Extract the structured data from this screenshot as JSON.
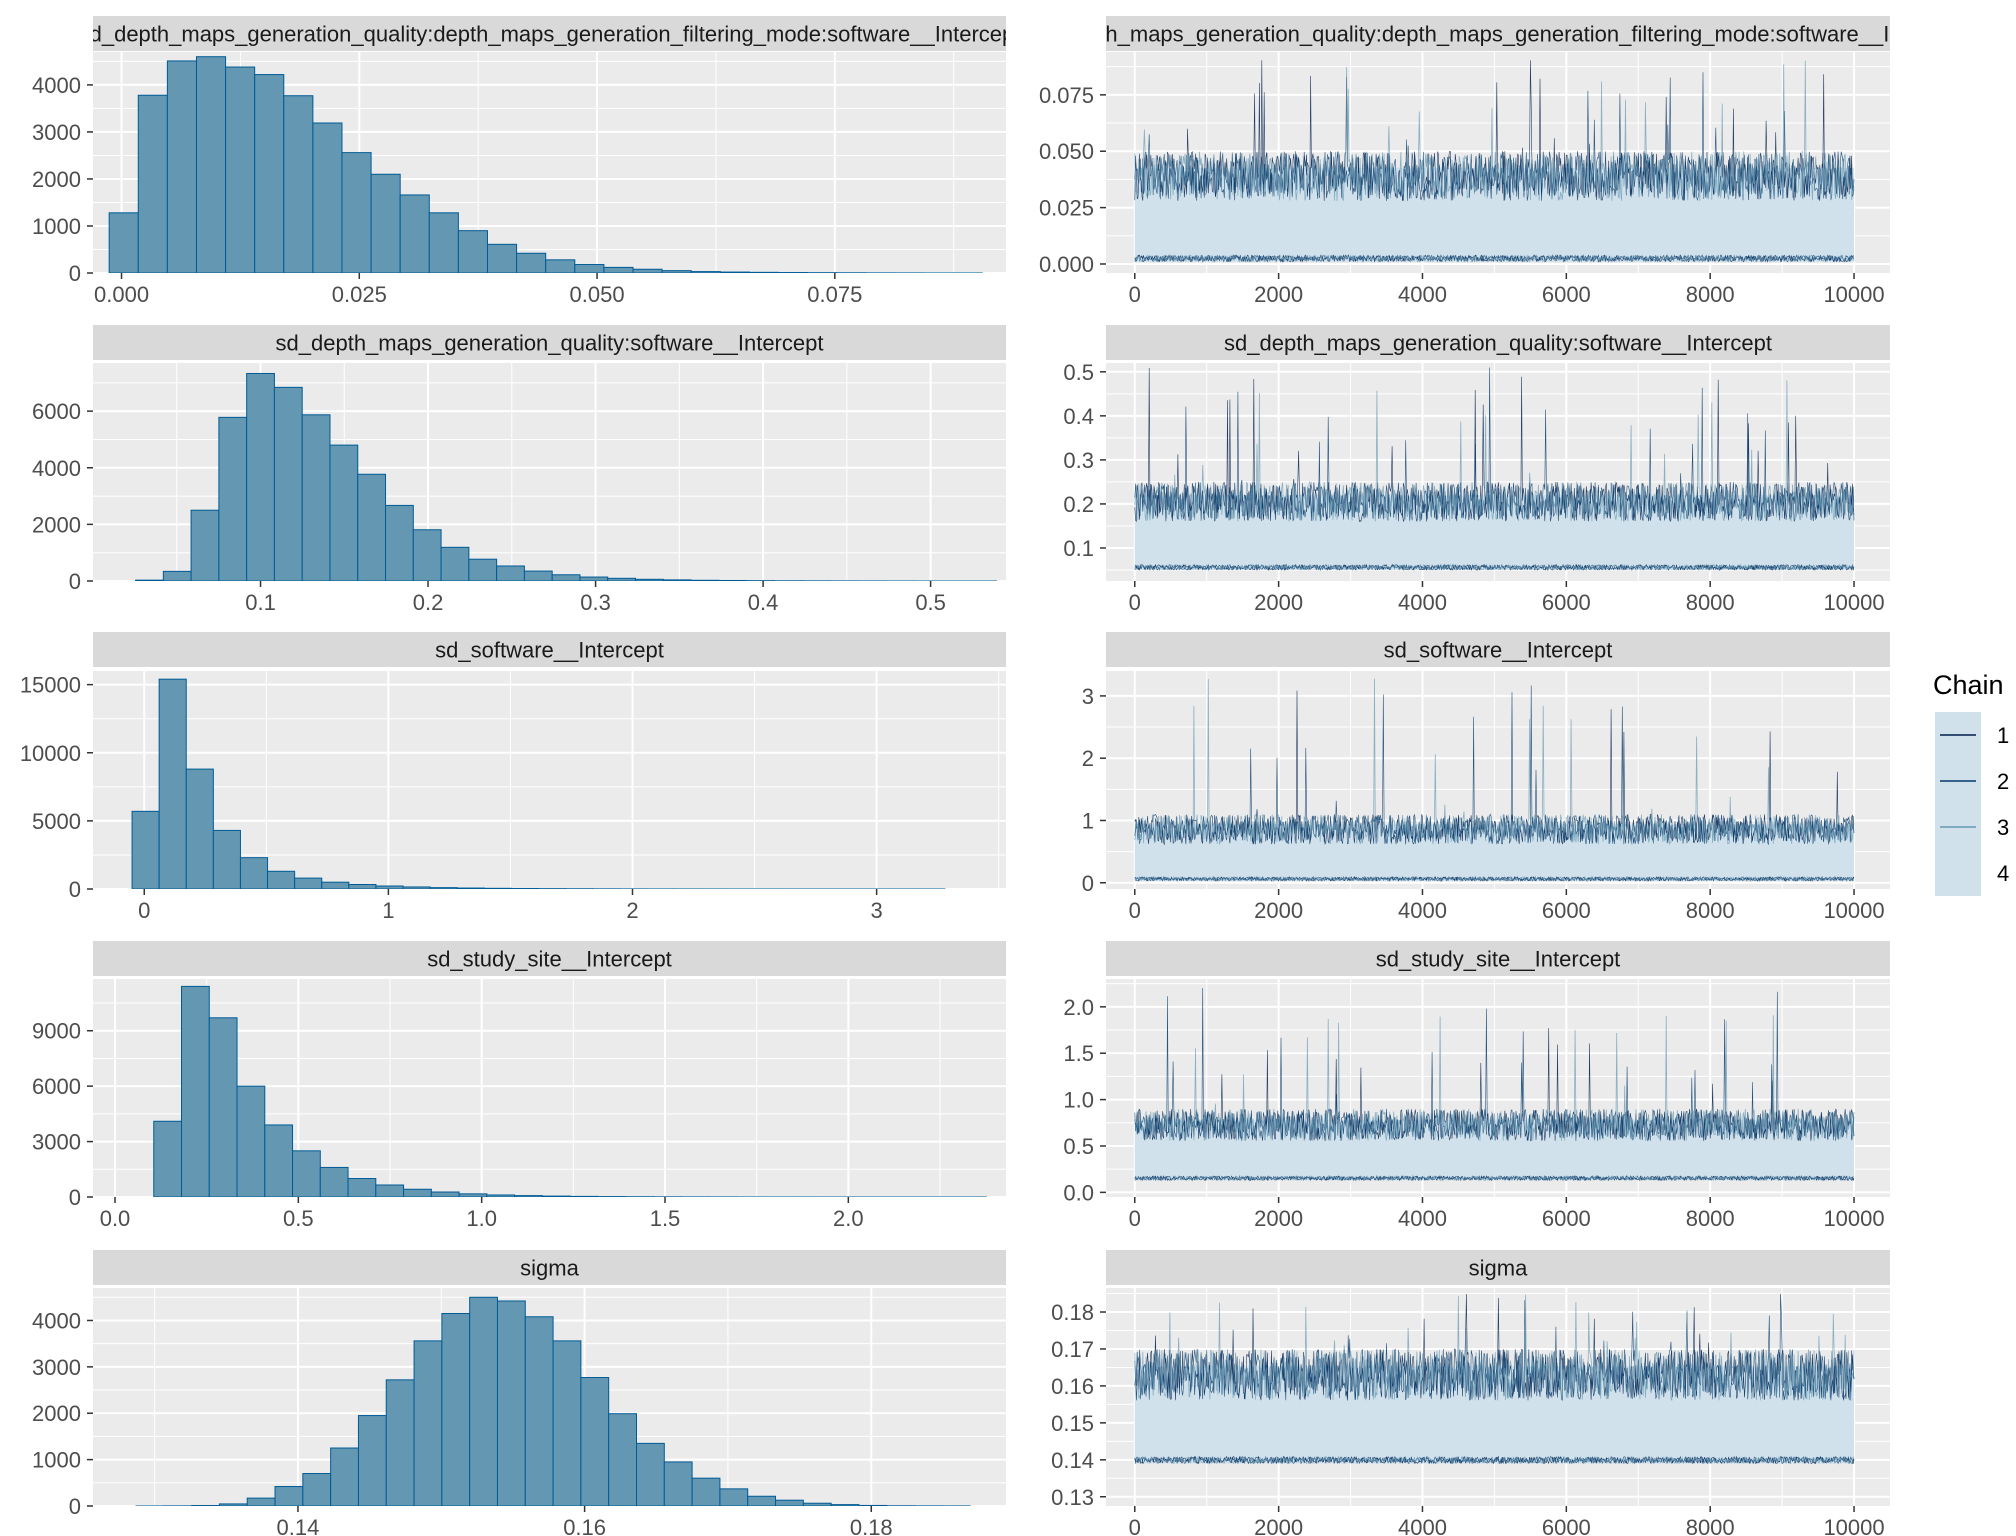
{
  "colors": {
    "panel_bg": "#EBEBEB",
    "strip_bg": "#D9D9D9",
    "grid": "#FFFFFF",
    "hist_fill": "#6497B1",
    "hist_stroke": "#005B96",
    "chain_colors": [
      "#011F4B",
      "#03396C",
      "#6497B1",
      "#D1E1EC"
    ],
    "trace_band": "#D1E1EC"
  },
  "legend": {
    "title": "Chain",
    "items": [
      "1",
      "2",
      "3",
      "4"
    ],
    "position": "right"
  },
  "chart_data": [
    {
      "type": "bar",
      "title": "sd_depth_maps_generation_quality:depth_maps_generation_filtering_mode:software__Intercept",
      "xlim": [
        -0.003,
        0.093
      ],
      "ylim": [
        0,
        4700
      ],
      "xticks": [
        0.0,
        0.025,
        0.05,
        0.075
      ],
      "xtick_labels": [
        "0.000",
        "0.025",
        "0.050",
        "0.075"
      ],
      "yticks": [
        0,
        1000,
        2000,
        3000,
        4000
      ],
      "ytick_labels": [
        "0",
        "1000",
        "2000",
        "3000",
        "4000"
      ],
      "bin_start": -0.0013,
      "bin_width": 0.00306,
      "values": [
        1280,
        3780,
        4510,
        4600,
        4380,
        4220,
        3770,
        3190,
        2560,
        2100,
        1660,
        1280,
        900,
        610,
        420,
        280,
        180,
        120,
        80,
        50,
        30,
        20,
        14,
        10,
        7,
        5,
        3,
        2,
        1,
        1
      ]
    },
    {
      "type": "line",
      "title": "sd_depth_maps_generation_quality:depth_maps_generation_filtering_mode:software__Intercept",
      "xlim": [
        -400,
        10500
      ],
      "ylim": [
        -0.004,
        0.094
      ],
      "xticks": [
        0,
        2000,
        4000,
        6000,
        8000,
        10000
      ],
      "xtick_labels": [
        "0",
        "2000",
        "4000",
        "6000",
        "8000",
        "10000"
      ],
      "yticks": [
        0.0,
        0.025,
        0.05,
        0.075
      ],
      "ytick_labels": [
        "0.000",
        "0.025",
        "0.050",
        "0.075"
      ],
      "iterations": [
        0,
        10000
      ],
      "band": [
        0.001,
        0.05
      ],
      "peak_max": 0.091,
      "mean": 0.016
    },
    {
      "type": "bar",
      "title": "sd_depth_maps_generation_quality:software__Intercept",
      "xlim": [
        0.0,
        0.545
      ],
      "ylim": [
        0,
        7700
      ],
      "xticks": [
        0.1,
        0.2,
        0.3,
        0.4,
        0.5
      ],
      "xtick_labels": [
        "0.1",
        "0.2",
        "0.3",
        "0.4",
        "0.5"
      ],
      "yticks": [
        0,
        2000,
        4000,
        6000
      ],
      "ytick_labels": [
        "0",
        "2000",
        "4000",
        "6000"
      ],
      "bin_start": 0.0254,
      "bin_width": 0.01658,
      "values": [
        30,
        340,
        2500,
        5780,
        7330,
        6840,
        5870,
        4800,
        3770,
        2670,
        1810,
        1190,
        770,
        530,
        350,
        220,
        140,
        95,
        60,
        40,
        25,
        18,
        12,
        8,
        6,
        4,
        3,
        2,
        1,
        1,
        1
      ]
    },
    {
      "type": "line",
      "title": "sd_depth_maps_generation_quality:software__Intercept",
      "xlim": [
        -400,
        10500
      ],
      "ylim": [
        0.025,
        0.52
      ],
      "xticks": [
        0,
        2000,
        4000,
        6000,
        8000,
        10000
      ],
      "xtick_labels": [
        "0",
        "2000",
        "4000",
        "6000",
        "8000",
        "10000"
      ],
      "yticks": [
        0.1,
        0.2,
        0.3,
        0.4,
        0.5
      ],
      "ytick_labels": [
        "0.1",
        "0.2",
        "0.3",
        "0.4",
        "0.5"
      ],
      "iterations": [
        0,
        10000
      ],
      "band": [
        0.05,
        0.25
      ],
      "peak_max": 0.51,
      "mean": 0.12
    },
    {
      "type": "bar",
      "title": "sd_software__Intercept",
      "xlim": [
        -0.21,
        3.53
      ],
      "ylim": [
        0,
        16000
      ],
      "xticks": [
        0,
        1,
        2,
        3
      ],
      "xtick_labels": [
        "0",
        "1",
        "2",
        "3"
      ],
      "yticks": [
        0,
        5000,
        10000,
        15000
      ],
      "ytick_labels": [
        "0",
        "5000",
        "10000",
        "15000"
      ],
      "bin_start": -0.05,
      "bin_width": 0.111,
      "values": [
        5700,
        15400,
        8800,
        4300,
        2300,
        1300,
        800,
        500,
        330,
        220,
        150,
        100,
        70,
        50,
        35,
        25,
        18,
        12,
        8,
        6,
        4,
        3,
        2,
        2,
        1,
        1,
        1,
        1,
        1,
        1
      ]
    },
    {
      "type": "line",
      "title": "sd_software__Intercept",
      "xlim": [
        -400,
        10500
      ],
      "ylim": [
        -0.1,
        3.4
      ],
      "xticks": [
        0,
        2000,
        4000,
        6000,
        8000,
        10000
      ],
      "xtick_labels": [
        "0",
        "2000",
        "4000",
        "6000",
        "8000",
        "10000"
      ],
      "yticks": [
        0,
        1,
        2,
        3
      ],
      "ytick_labels": [
        "0",
        "1",
        "2",
        "3"
      ],
      "iterations": [
        0,
        10000
      ],
      "band": [
        0.03,
        1.1
      ],
      "peak_max": 3.3,
      "mean": 0.3
    },
    {
      "type": "bar",
      "title": "sd_study_site__Intercept",
      "xlim": [
        -0.06,
        2.43
      ],
      "ylim": [
        0,
        11800
      ],
      "xticks": [
        0.0,
        0.5,
        1.0,
        1.5,
        2.0
      ],
      "xtick_labels": [
        "0.0",
        "0.5",
        "1.0",
        "1.5",
        "2.0"
      ],
      "yticks": [
        0,
        3000,
        6000,
        9000
      ],
      "ytick_labels": [
        "0",
        "3000",
        "6000",
        "9000"
      ],
      "bin_start": 0.03,
      "bin_width": 0.0757,
      "values": [
        0,
        4100,
        11400,
        9700,
        6000,
        3900,
        2500,
        1600,
        1000,
        650,
        420,
        270,
        170,
        110,
        75,
        50,
        33,
        22,
        15,
        10,
        7,
        5,
        3,
        2,
        2,
        1,
        1,
        1,
        1,
        1,
        1
      ]
    },
    {
      "type": "line",
      "title": "sd_study_site__Intercept",
      "xlim": [
        -400,
        10500
      ],
      "ylim": [
        -0.05,
        2.3
      ],
      "xticks": [
        0,
        2000,
        4000,
        6000,
        8000,
        10000
      ],
      "xtick_labels": [
        "0",
        "2000",
        "4000",
        "6000",
        "8000",
        "10000"
      ],
      "yticks": [
        0.0,
        0.5,
        1.0,
        1.5,
        2.0
      ],
      "ytick_labels": [
        "0.0",
        "0.5",
        "1.0",
        "1.5",
        "2.0"
      ],
      "iterations": [
        0,
        10000
      ],
      "band": [
        0.13,
        0.9
      ],
      "peak_max": 2.25,
      "mean": 0.33
    },
    {
      "type": "bar",
      "title": "sigma",
      "xlim": [
        0.1257,
        0.1894
      ],
      "ylim": [
        0,
        4700
      ],
      "xticks": [
        0.14,
        0.16,
        0.18
      ],
      "xtick_labels": [
        "0.14",
        "0.16",
        "0.18"
      ],
      "yticks": [
        0,
        1000,
        2000,
        3000,
        4000
      ],
      "ytick_labels": [
        "0",
        "1000",
        "2000",
        "3000",
        "4000"
      ],
      "bin_start": 0.1287,
      "bin_width": 0.00194,
      "values": [
        1,
        3,
        10,
        45,
        170,
        420,
        700,
        1250,
        1950,
        2720,
        3560,
        4150,
        4500,
        4420,
        4080,
        3560,
        2770,
        1990,
        1350,
        950,
        600,
        370,
        210,
        125,
        60,
        30,
        12,
        5,
        3,
        2
      ]
    },
    {
      "type": "line",
      "title": "sigma",
      "xlim": [
        -400,
        10500
      ],
      "ylim": [
        0.1275,
        0.1865
      ],
      "xticks": [
        0,
        2000,
        4000,
        6000,
        8000,
        10000
      ],
      "xtick_labels": [
        "0",
        "2000",
        "4000",
        "6000",
        "8000",
        "10000"
      ],
      "yticks": [
        0.13,
        0.14,
        0.15,
        0.16,
        0.17,
        0.18
      ],
      "ytick_labels": [
        "0.13",
        "0.14",
        "0.15",
        "0.16",
        "0.17",
        "0.18"
      ],
      "iterations": [
        0,
        10000
      ],
      "band": [
        0.139,
        0.17
      ],
      "peak_max": 0.185,
      "mean": 0.1535
    }
  ]
}
